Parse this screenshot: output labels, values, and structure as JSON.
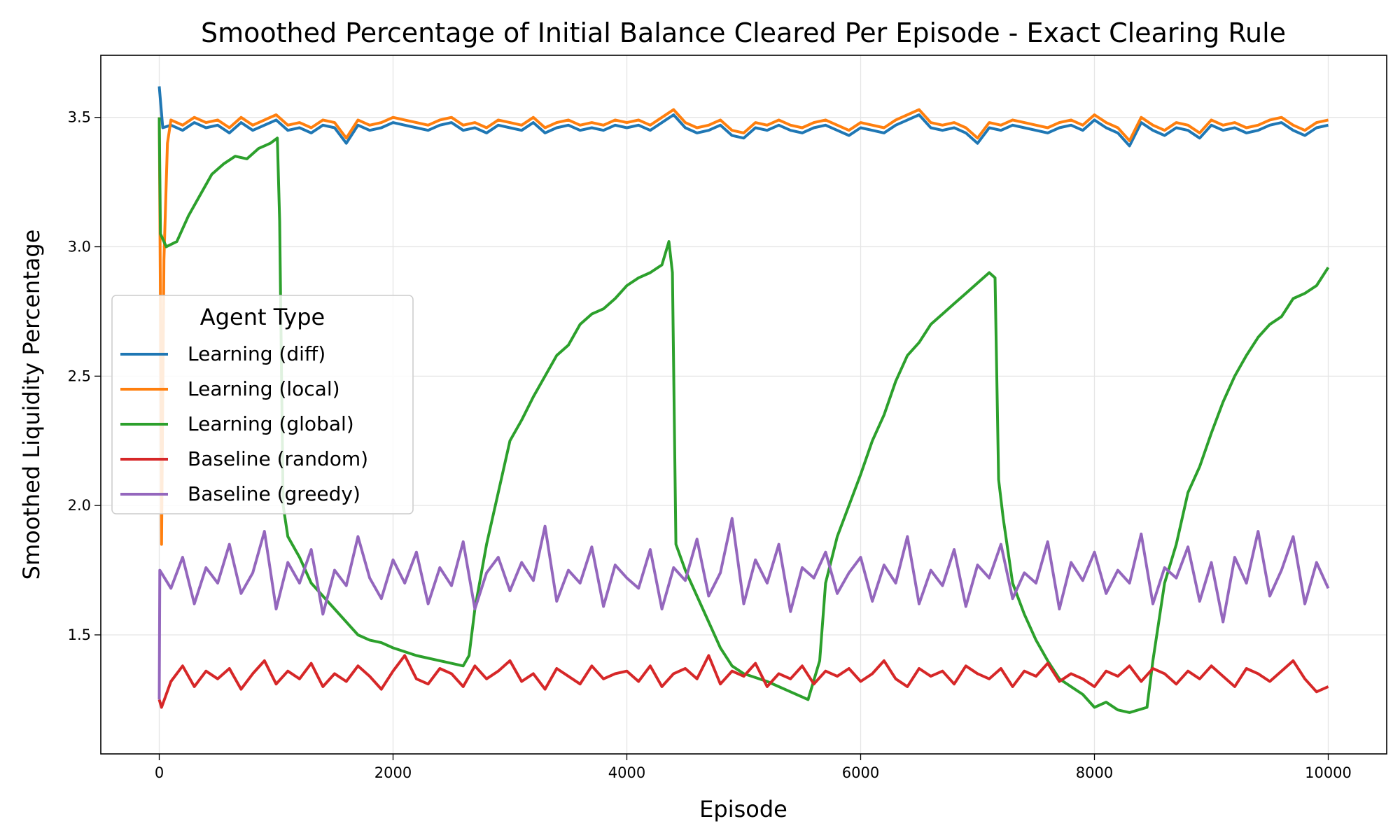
{
  "chart_data": {
    "type": "line",
    "title": "Smoothed Percentage of Initial Balance Cleared Per Episode - Exact Clearing Rule",
    "xlabel": "Episode",
    "ylabel": "Smoothed Liquidity Percentage",
    "xlim": [
      -500,
      10500
    ],
    "ylim": [
      1.04,
      3.74
    ],
    "xticks": [
      0,
      2000,
      4000,
      6000,
      8000,
      10000
    ],
    "xtick_labels": [
      "0",
      "2000",
      "4000",
      "6000",
      "8000",
      "10000"
    ],
    "yticks": [
      1.5,
      2.0,
      2.5,
      3.0,
      3.5
    ],
    "ytick_labels": [
      "1.5",
      "2.0",
      "2.5",
      "3.0",
      "3.5"
    ],
    "grid": true,
    "legend": {
      "title": "Agent Type",
      "placement": "center-left"
    },
    "series": [
      {
        "name": "Learning (diff)",
        "color": "#1f77b4",
        "start_points": [
          [
            0,
            3.62
          ],
          [
            30,
            3.46
          ]
        ],
        "x_start": 100,
        "x_step": 100,
        "values": [
          3.47,
          3.45,
          3.48,
          3.46,
          3.47,
          3.44,
          3.48,
          3.45,
          3.47,
          3.49,
          3.45,
          3.46,
          3.44,
          3.47,
          3.46,
          3.4,
          3.47,
          3.45,
          3.46,
          3.48,
          3.47,
          3.46,
          3.45,
          3.47,
          3.48,
          3.45,
          3.46,
          3.44,
          3.47,
          3.46,
          3.45,
          3.48,
          3.44,
          3.46,
          3.47,
          3.45,
          3.46,
          3.45,
          3.47,
          3.46,
          3.47,
          3.45,
          3.48,
          3.51,
          3.46,
          3.44,
          3.45,
          3.47,
          3.43,
          3.42,
          3.46,
          3.45,
          3.47,
          3.45,
          3.44,
          3.46,
          3.47,
          3.45,
          3.43,
          3.46,
          3.45,
          3.44,
          3.47,
          3.49,
          3.51,
          3.46,
          3.45,
          3.46,
          3.44,
          3.4,
          3.46,
          3.45,
          3.47,
          3.46,
          3.45,
          3.44,
          3.46,
          3.47,
          3.45,
          3.49,
          3.46,
          3.44,
          3.39,
          3.48,
          3.45,
          3.43,
          3.46,
          3.45,
          3.42,
          3.47,
          3.45,
          3.46,
          3.44,
          3.45,
          3.47,
          3.48,
          3.45,
          3.43,
          3.46,
          3.47
        ]
      },
      {
        "name": "Learning (local)",
        "color": "#ff7f0e",
        "start_points": [
          [
            0,
            3.5
          ],
          [
            10,
            2.8
          ],
          [
            20,
            1.85
          ],
          [
            40,
            2.95
          ],
          [
            70,
            3.4
          ]
        ],
        "x_start": 100,
        "x_step": 100,
        "values": [
          3.49,
          3.47,
          3.5,
          3.48,
          3.49,
          3.46,
          3.5,
          3.47,
          3.49,
          3.51,
          3.47,
          3.48,
          3.46,
          3.49,
          3.48,
          3.42,
          3.49,
          3.47,
          3.48,
          3.5,
          3.49,
          3.48,
          3.47,
          3.49,
          3.5,
          3.47,
          3.48,
          3.46,
          3.49,
          3.48,
          3.47,
          3.5,
          3.46,
          3.48,
          3.49,
          3.47,
          3.48,
          3.47,
          3.49,
          3.48,
          3.49,
          3.47,
          3.5,
          3.53,
          3.48,
          3.46,
          3.47,
          3.49,
          3.45,
          3.44,
          3.48,
          3.47,
          3.49,
          3.47,
          3.46,
          3.48,
          3.49,
          3.47,
          3.45,
          3.48,
          3.47,
          3.46,
          3.49,
          3.51,
          3.53,
          3.48,
          3.47,
          3.48,
          3.46,
          3.42,
          3.48,
          3.47,
          3.49,
          3.48,
          3.47,
          3.46,
          3.48,
          3.49,
          3.47,
          3.51,
          3.48,
          3.46,
          3.41,
          3.5,
          3.47,
          3.45,
          3.48,
          3.47,
          3.44,
          3.49,
          3.47,
          3.48,
          3.46,
          3.47,
          3.49,
          3.5,
          3.47,
          3.45,
          3.48,
          3.49
        ]
      },
      {
        "name": "Learning (global)",
        "color": "#2ca02c",
        "start_points": [
          [
            0,
            3.5
          ],
          [
            10,
            3.05
          ],
          [
            60,
            3.0
          ],
          [
            150,
            3.02
          ],
          [
            250,
            3.12
          ],
          [
            350,
            3.2
          ],
          [
            450,
            3.28
          ],
          [
            550,
            3.32
          ],
          [
            650,
            3.35
          ],
          [
            750,
            3.34
          ],
          [
            850,
            3.38
          ],
          [
            950,
            3.4
          ],
          [
            1010,
            3.42
          ],
          [
            1030,
            3.1
          ],
          [
            1060,
            2.0
          ],
          [
            1100,
            1.88
          ],
          [
            1200,
            1.8
          ],
          [
            1300,
            1.7
          ],
          [
            1400,
            1.65
          ],
          [
            1500,
            1.6
          ],
          [
            1600,
            1.55
          ],
          [
            1700,
            1.5
          ],
          [
            1800,
            1.48
          ],
          [
            1900,
            1.47
          ],
          [
            2000,
            1.45
          ],
          [
            2200,
            1.42
          ],
          [
            2400,
            1.4
          ],
          [
            2600,
            1.38
          ],
          [
            2650,
            1.42
          ],
          [
            2700,
            1.6
          ],
          [
            2800,
            1.85
          ],
          [
            2900,
            2.05
          ],
          [
            3000,
            2.25
          ],
          [
            3100,
            2.33
          ],
          [
            3200,
            2.42
          ],
          [
            3300,
            2.5
          ],
          [
            3400,
            2.58
          ],
          [
            3500,
            2.62
          ],
          [
            3600,
            2.7
          ],
          [
            3700,
            2.74
          ],
          [
            3800,
            2.76
          ],
          [
            3900,
            2.8
          ],
          [
            4000,
            2.85
          ],
          [
            4100,
            2.88
          ],
          [
            4200,
            2.9
          ],
          [
            4300,
            2.93
          ],
          [
            4360,
            3.02
          ],
          [
            4390,
            2.9
          ],
          [
            4420,
            1.85
          ],
          [
            4500,
            1.75
          ],
          [
            4600,
            1.65
          ],
          [
            4700,
            1.55
          ],
          [
            4800,
            1.45
          ],
          [
            4900,
            1.38
          ],
          [
            5000,
            1.35
          ],
          [
            5200,
            1.32
          ],
          [
            5400,
            1.28
          ],
          [
            5550,
            1.25
          ],
          [
            5650,
            1.4
          ],
          [
            5700,
            1.7
          ],
          [
            5800,
            1.88
          ],
          [
            5900,
            2.0
          ],
          [
            6000,
            2.12
          ],
          [
            6100,
            2.25
          ],
          [
            6200,
            2.35
          ],
          [
            6300,
            2.48
          ],
          [
            6400,
            2.58
          ],
          [
            6500,
            2.63
          ],
          [
            6600,
            2.7
          ],
          [
            6700,
            2.74
          ],
          [
            6800,
            2.78
          ],
          [
            6900,
            2.82
          ],
          [
            7000,
            2.86
          ],
          [
            7100,
            2.9
          ],
          [
            7150,
            2.88
          ],
          [
            7180,
            2.1
          ],
          [
            7220,
            1.95
          ],
          [
            7300,
            1.7
          ],
          [
            7400,
            1.58
          ],
          [
            7500,
            1.48
          ],
          [
            7600,
            1.4
          ],
          [
            7700,
            1.33
          ],
          [
            7800,
            1.3
          ],
          [
            7900,
            1.27
          ],
          [
            8000,
            1.22
          ],
          [
            8100,
            1.24
          ],
          [
            8200,
            1.21
          ],
          [
            8300,
            1.2
          ],
          [
            8450,
            1.22
          ],
          [
            8500,
            1.4
          ],
          [
            8600,
            1.7
          ],
          [
            8700,
            1.85
          ],
          [
            8800,
            2.05
          ],
          [
            8900,
            2.15
          ],
          [
            9000,
            2.28
          ],
          [
            9100,
            2.4
          ],
          [
            9200,
            2.5
          ],
          [
            9300,
            2.58
          ],
          [
            9400,
            2.65
          ],
          [
            9500,
            2.7
          ],
          [
            9600,
            2.73
          ],
          [
            9700,
            2.8
          ],
          [
            9800,
            2.82
          ],
          [
            9900,
            2.85
          ],
          [
            10000,
            2.92
          ]
        ],
        "x_start": 10100,
        "x_step": 100,
        "values": []
      },
      {
        "name": "Baseline (random)",
        "color": "#d62728",
        "start_points": [
          [
            0,
            1.25
          ],
          [
            20,
            1.22
          ]
        ],
        "x_start": 100,
        "x_step": 100,
        "values": [
          1.32,
          1.38,
          1.3,
          1.36,
          1.33,
          1.37,
          1.29,
          1.35,
          1.4,
          1.31,
          1.36,
          1.33,
          1.39,
          1.3,
          1.35,
          1.32,
          1.38,
          1.34,
          1.29,
          1.36,
          1.42,
          1.33,
          1.31,
          1.37,
          1.35,
          1.3,
          1.38,
          1.33,
          1.36,
          1.4,
          1.32,
          1.35,
          1.29,
          1.37,
          1.34,
          1.31,
          1.38,
          1.33,
          1.35,
          1.36,
          1.32,
          1.38,
          1.3,
          1.35,
          1.37,
          1.33,
          1.42,
          1.31,
          1.36,
          1.34,
          1.39,
          1.3,
          1.35,
          1.33,
          1.38,
          1.31,
          1.36,
          1.34,
          1.37,
          1.32,
          1.35,
          1.4,
          1.33,
          1.3,
          1.37,
          1.34,
          1.36,
          1.31,
          1.38,
          1.35,
          1.33,
          1.37,
          1.3,
          1.36,
          1.34,
          1.39,
          1.32,
          1.35,
          1.33,
          1.3,
          1.36,
          1.34,
          1.38,
          1.32,
          1.37,
          1.35,
          1.31,
          1.36,
          1.33,
          1.38,
          1.34,
          1.3,
          1.37,
          1.35,
          1.32,
          1.36,
          1.4,
          1.33,
          1.28,
          1.3
        ]
      },
      {
        "name": "Baseline (greedy)",
        "color": "#9467bd",
        "start_points": [
          [
            0,
            1.25
          ],
          [
            5,
            1.75
          ]
        ],
        "x_start": 100,
        "x_step": 100,
        "values": [
          1.68,
          1.8,
          1.62,
          1.76,
          1.7,
          1.85,
          1.66,
          1.74,
          1.9,
          1.6,
          1.78,
          1.7,
          1.83,
          1.58,
          1.75,
          1.69,
          1.88,
          1.72,
          1.64,
          1.79,
          1.7,
          1.82,
          1.62,
          1.76,
          1.69,
          1.86,
          1.6,
          1.74,
          1.8,
          1.67,
          1.78,
          1.71,
          1.92,
          1.63,
          1.75,
          1.7,
          1.84,
          1.61,
          1.77,
          1.72,
          1.68,
          1.83,
          1.6,
          1.76,
          1.71,
          1.87,
          1.65,
          1.74,
          1.95,
          1.62,
          1.79,
          1.7,
          1.85,
          1.59,
          1.76,
          1.72,
          1.82,
          1.66,
          1.74,
          1.8,
          1.63,
          1.77,
          1.7,
          1.88,
          1.62,
          1.75,
          1.69,
          1.83,
          1.61,
          1.77,
          1.72,
          1.85,
          1.64,
          1.74,
          1.7,
          1.86,
          1.6,
          1.78,
          1.71,
          1.82,
          1.66,
          1.75,
          1.7,
          1.89,
          1.62,
          1.76,
          1.72,
          1.84,
          1.63,
          1.78,
          1.55,
          1.8,
          1.7,
          1.9,
          1.65,
          1.75,
          1.88,
          1.62,
          1.78,
          1.68
        ]
      }
    ]
  }
}
